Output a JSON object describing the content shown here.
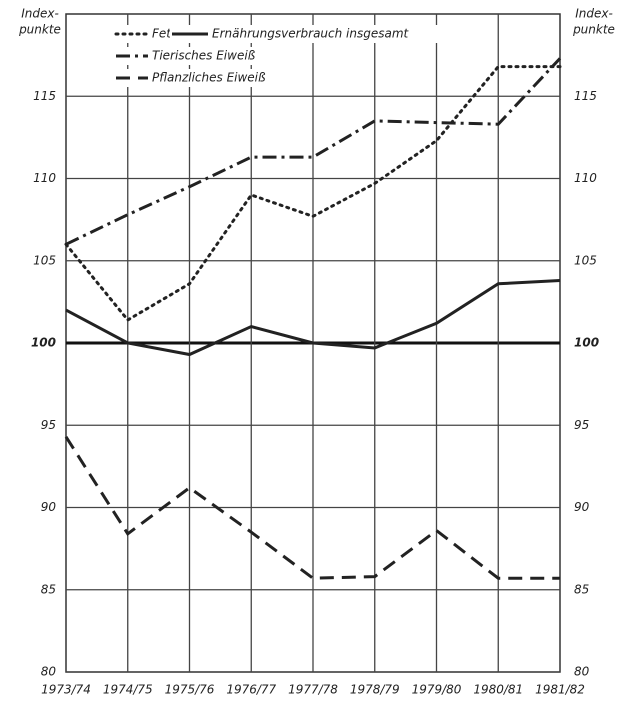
{
  "chart_data": {
    "type": "line",
    "y_label": [
      "Index-",
      "punkte"
    ],
    "y2_label": [
      "Index-",
      "punkte"
    ],
    "categories": [
      "1973/74",
      "1974/75",
      "1975/76",
      "1976/77",
      "1977/78",
      "1978/79",
      "1979/80",
      "1980/81",
      "1981/82"
    ],
    "series": [
      {
        "name": "Fett",
        "color": "#222222",
        "style": "dotted",
        "values": [
          106.0,
          101.4,
          103.6,
          109.0,
          107.7,
          109.7,
          112.3,
          116.8,
          116.8
        ]
      },
      {
        "name": "Ernährungsverbrauch insgesamt",
        "color": "#222222",
        "style": "solid",
        "values": [
          102.0,
          100.0,
          99.3,
          101.0,
          100.0,
          99.7,
          101.2,
          103.6,
          103.8
        ]
      },
      {
        "name": "Tierisches Eiweiß",
        "color": "#222222",
        "style": "dashdot",
        "values": [
          106.0,
          107.8,
          109.5,
          111.3,
          111.3,
          113.5,
          113.4,
          113.3,
          117.3
        ]
      },
      {
        "name": "Pflanzliches Eiweiß",
        "color": "#222222",
        "style": "dashed",
        "values": [
          94.3,
          88.4,
          91.2,
          88.5,
          85.7,
          85.8,
          88.6,
          85.7,
          85.7
        ]
      }
    ],
    "ylim": [
      80,
      120
    ],
    "yticks": [
      80,
      85,
      90,
      95,
      100,
      105,
      110,
      115
    ],
    "y2lim": [
      80,
      120
    ],
    "y2ticks": [
      80,
      85,
      90,
      95,
      100,
      105,
      110,
      115
    ],
    "baseline": 100,
    "grid": true,
    "legend": "top-left"
  }
}
